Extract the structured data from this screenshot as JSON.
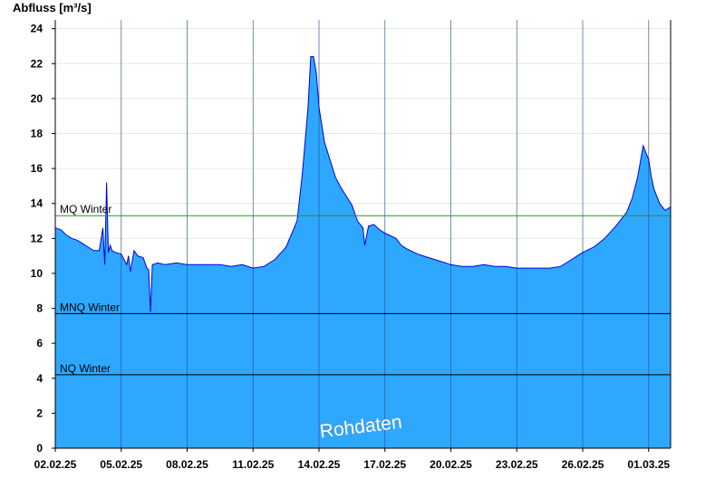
{
  "chart_data": {
    "type": "area",
    "ylabel": "Abfluss [m³/s]",
    "ylim": [
      0,
      24.5
    ],
    "yticks": [
      0,
      2,
      4,
      6,
      8,
      10,
      12,
      14,
      16,
      18,
      20,
      22,
      24
    ],
    "xlim": [
      "2025-02-02T00:00",
      "2025-03-02T00:00"
    ],
    "xticks": [
      {
        "date": "2025-02-02",
        "label": "02.02.25"
      },
      {
        "date": "2025-02-05",
        "label": "05.02.25"
      },
      {
        "date": "2025-02-08",
        "label": "08.02.25"
      },
      {
        "date": "2025-02-11",
        "label": "11.02.25"
      },
      {
        "date": "2025-02-14",
        "label": "14.02.25"
      },
      {
        "date": "2025-02-17",
        "label": "17.02.25"
      },
      {
        "date": "2025-02-20",
        "label": "20.02.25"
      },
      {
        "date": "2025-02-23",
        "label": "23.02.25"
      },
      {
        "date": "2025-02-26",
        "label": "26.02.25"
      },
      {
        "date": "2025-03-01",
        "label": "01.03.25"
      }
    ],
    "grid": true,
    "reference_lines": [
      {
        "label": "MQ Winter",
        "value": 13.3,
        "color": "#2e8b2e"
      },
      {
        "label": "MNQ Winter",
        "value": 7.7,
        "color": "#000000"
      },
      {
        "label": "NQ Winter",
        "value": 4.2,
        "color": "#000000"
      }
    ],
    "annotation": "Rohdaten",
    "fill_color": "#2ea8ff",
    "line_color": "#0000dd",
    "series": [
      {
        "x": [
          "2025-02-02T00:00",
          "2025-02-02T06:00",
          "2025-02-02T12:00",
          "2025-02-02T18:00",
          "2025-02-03T00:00",
          "2025-02-03T06:00",
          "2025-02-03T12:00",
          "2025-02-03T18:00",
          "2025-02-04T00:00",
          "2025-02-04T04:00",
          "2025-02-04T06:00",
          "2025-02-04T08:00",
          "2025-02-04T10:00",
          "2025-02-04T12:00",
          "2025-02-04T14:00",
          "2025-02-04T18:00",
          "2025-02-05T00:00",
          "2025-02-05T06:00",
          "2025-02-05T08:00",
          "2025-02-05T10:00",
          "2025-02-05T14:00",
          "2025-02-05T18:00",
          "2025-02-06T00:00",
          "2025-02-06T04:00",
          "2025-02-06T06:00",
          "2025-02-06T08:00",
          "2025-02-06T10:00",
          "2025-02-06T16:00",
          "2025-02-07T00:00",
          "2025-02-07T12:00",
          "2025-02-08T00:00",
          "2025-02-08T12:00",
          "2025-02-09T00:00",
          "2025-02-09T12:00",
          "2025-02-10T00:00",
          "2025-02-10T12:00",
          "2025-02-11T00:00",
          "2025-02-11T12:00",
          "2025-02-12T00:00",
          "2025-02-12T12:00",
          "2025-02-13T00:00",
          "2025-02-13T06:00",
          "2025-02-13T12:00",
          "2025-02-13T15:00",
          "2025-02-13T18:00",
          "2025-02-13T21:00",
          "2025-02-14T00:00",
          "2025-02-14T06:00",
          "2025-02-14T12:00",
          "2025-02-14T18:00",
          "2025-02-15T00:00",
          "2025-02-15T06:00",
          "2025-02-15T12:00",
          "2025-02-15T18:00",
          "2025-02-16T00:00",
          "2025-02-16T02:00",
          "2025-02-16T06:00",
          "2025-02-16T12:00",
          "2025-02-16T18:00",
          "2025-02-17T00:00",
          "2025-02-17T12:00",
          "2025-02-17T18:00",
          "2025-02-18T00:00",
          "2025-02-18T12:00",
          "2025-02-19T00:00",
          "2025-02-19T12:00",
          "2025-02-20T00:00",
          "2025-02-20T12:00",
          "2025-02-21T00:00",
          "2025-02-21T12:00",
          "2025-02-22T00:00",
          "2025-02-22T12:00",
          "2025-02-23T00:00",
          "2025-02-23T12:00",
          "2025-02-24T00:00",
          "2025-02-24T12:00",
          "2025-02-25T00:00",
          "2025-02-25T12:00",
          "2025-02-26T00:00",
          "2025-02-26T12:00",
          "2025-02-27T00:00",
          "2025-02-27T12:00",
          "2025-02-28T00:00",
          "2025-02-28T06:00",
          "2025-02-28T12:00",
          "2025-02-28T18:00",
          "2025-03-01T00:00",
          "2025-03-01T03:00",
          "2025-03-01T06:00",
          "2025-03-01T12:00",
          "2025-03-01T18:00",
          "2025-03-02T00:00"
        ],
        "values": [
          12.6,
          12.5,
          12.2,
          12.0,
          11.9,
          11.7,
          11.5,
          11.3,
          11.3,
          12.6,
          10.5,
          15.2,
          11.2,
          11.6,
          11.3,
          11.2,
          11.1,
          10.5,
          11.0,
          10.1,
          11.3,
          11.0,
          10.9,
          10.3,
          10.2,
          7.8,
          10.5,
          10.6,
          10.5,
          10.6,
          10.5,
          10.5,
          10.5,
          10.5,
          10.4,
          10.5,
          10.3,
          10.4,
          10.8,
          11.5,
          13.0,
          15.8,
          19.5,
          22.4,
          22.4,
          21.5,
          19.5,
          17.5,
          16.5,
          15.5,
          14.9,
          14.4,
          13.9,
          13.0,
          12.6,
          11.6,
          12.7,
          12.8,
          12.5,
          12.3,
          12.0,
          11.6,
          11.4,
          11.1,
          10.9,
          10.7,
          10.5,
          10.4,
          10.4,
          10.5,
          10.4,
          10.4,
          10.3,
          10.3,
          10.3,
          10.3,
          10.4,
          10.8,
          11.2,
          11.5,
          12.0,
          12.7,
          13.5,
          14.3,
          15.5,
          17.3,
          16.5,
          15.5,
          14.8,
          14.0,
          13.6,
          13.8
        ]
      }
    ]
  }
}
